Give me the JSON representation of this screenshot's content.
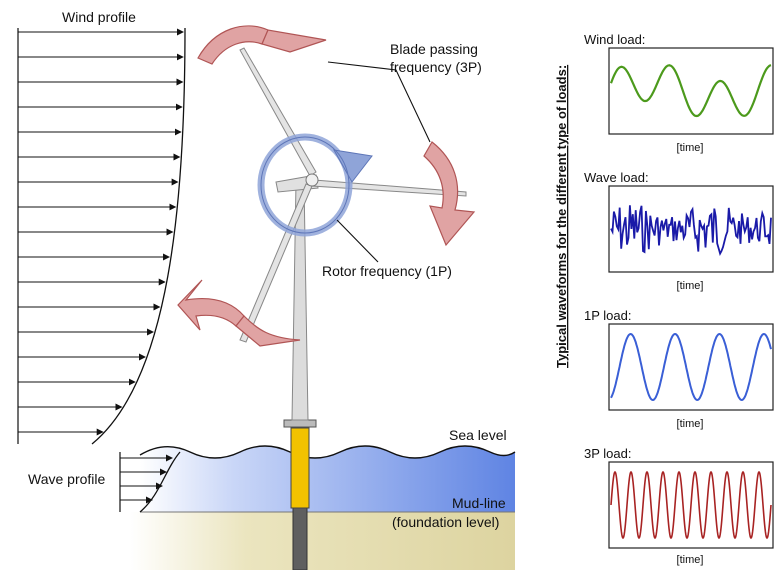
{
  "labels": {
    "wind_profile": "Wind profile",
    "wave_profile": "Wave profile",
    "blade_passing_line1": "Blade passing",
    "blade_passing_line2": "frequency (3P)",
    "rotor_frequency": "Rotor frequency (1P)",
    "sea_level": "Sea level",
    "mud_line": "Mud-line",
    "foundation_level": "(foundation level)",
    "vertical_title": "Typical waveforms for the different type of loads:"
  },
  "panels": [
    {
      "title": "Wind load:",
      "time_label": "[time]",
      "color": "#4c9a1c"
    },
    {
      "title": "Wave load:",
      "time_label": "[time]",
      "color": "#1a1aa8"
    },
    {
      "title": "1P load:",
      "time_label": "[time]",
      "color": "#3a5fd6"
    },
    {
      "title": "3P load:",
      "time_label": "[time]",
      "color": "#a82323"
    }
  ],
  "colors": {
    "arrow_red": "#d98b8b",
    "arrow_blue": "#8fa4d8",
    "sea": "#6d8fe6",
    "seabed": "#e0d8a6",
    "transition_piece": "#f2c200",
    "tower": "#cfcfcf",
    "monopile": "#666666"
  }
}
